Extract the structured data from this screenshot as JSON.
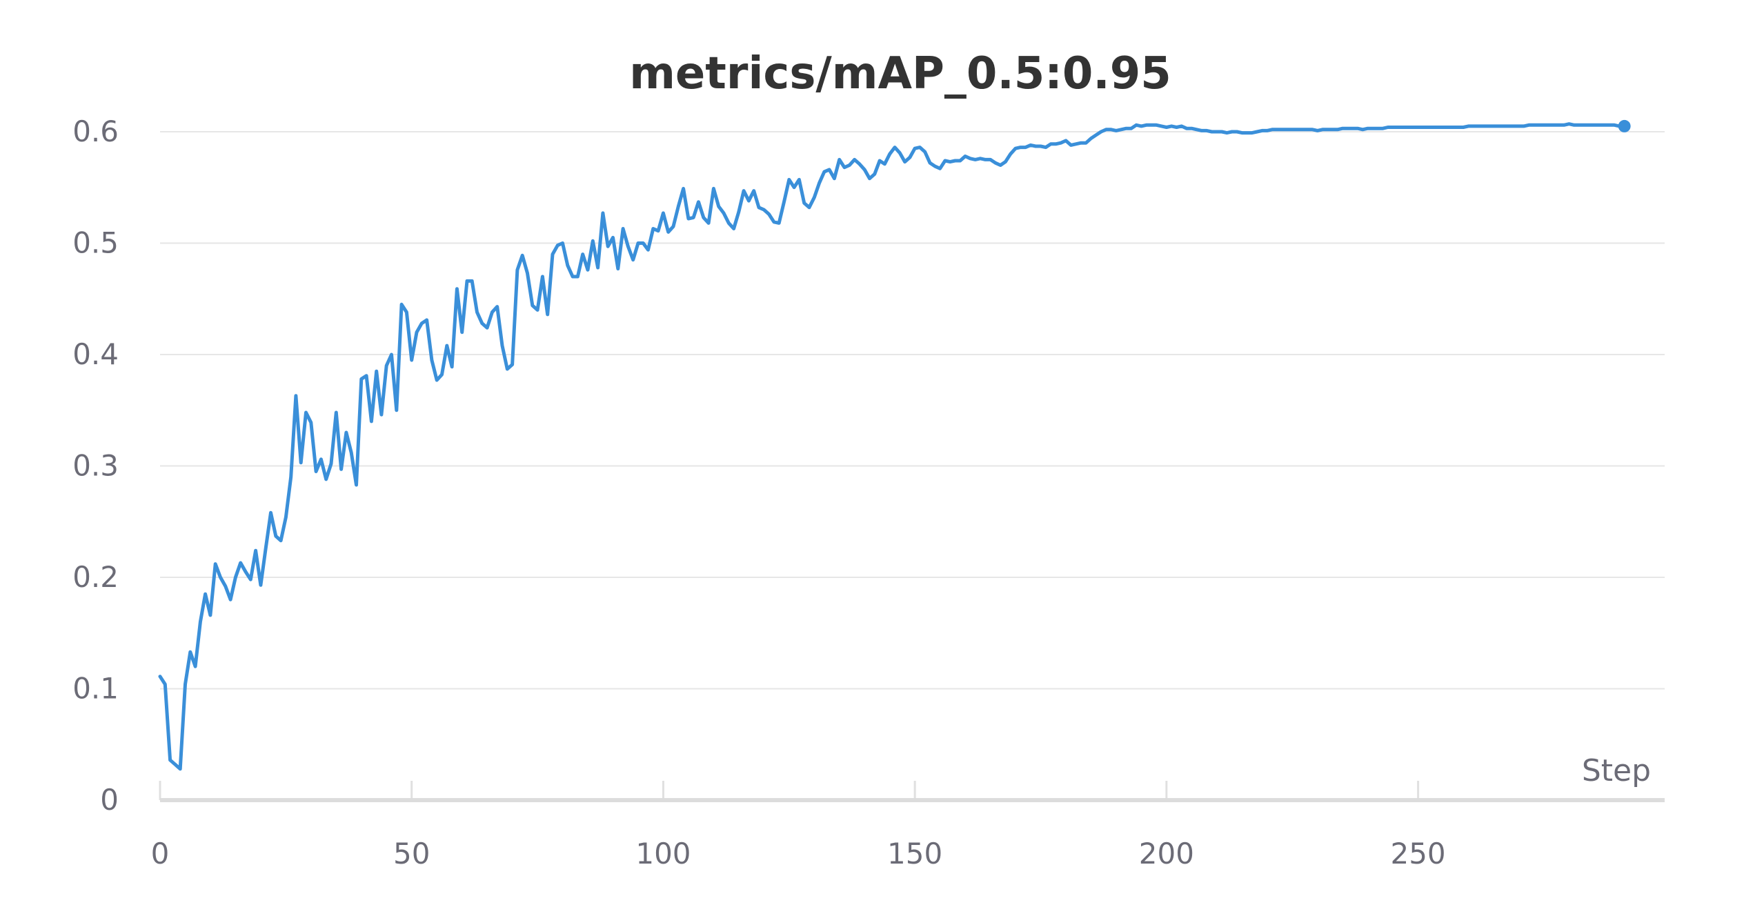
{
  "chart_data": {
    "type": "line",
    "title": "metrics/mAP_0.5:0.95",
    "xlabel": "Step",
    "ylabel": "",
    "xlim": [
      0,
      299
    ],
    "ylim": [
      0,
      0.62
    ],
    "x_ticks": [
      "0",
      "50",
      "100",
      "150",
      "200",
      "250"
    ],
    "y_ticks": [
      "0",
      "0.1",
      "0.2",
      "0.3",
      "0.4",
      "0.5",
      "0.6"
    ],
    "grid": true,
    "line_color": "#3a8fd9",
    "series": [
      {
        "x_start": 0,
        "x_step": 1,
        "values": [
          0.111,
          0.104,
          0.036,
          0.032,
          0.028,
          0.104,
          0.133,
          0.12,
          0.16,
          0.185,
          0.166,
          0.212,
          0.2,
          0.192,
          0.18,
          0.2,
          0.213,
          0.205,
          0.198,
          0.224,
          0.193,
          0.226,
          0.258,
          0.237,
          0.233,
          0.254,
          0.29,
          0.363,
          0.303,
          0.348,
          0.339,
          0.295,
          0.306,
          0.288,
          0.302,
          0.348,
          0.297,
          0.33,
          0.312,
          0.283,
          0.378,
          0.381,
          0.34,
          0.385,
          0.346,
          0.39,
          0.4,
          0.35,
          0.445,
          0.438,
          0.395,
          0.42,
          0.428,
          0.431,
          0.395,
          0.377,
          0.382,
          0.408,
          0.389,
          0.459,
          0.42,
          0.466,
          0.466,
          0.438,
          0.428,
          0.424,
          0.438,
          0.443,
          0.408,
          0.387,
          0.391,
          0.476,
          0.489,
          0.473,
          0.444,
          0.44,
          0.47,
          0.436,
          0.49,
          0.498,
          0.5,
          0.48,
          0.47,
          0.47,
          0.49,
          0.476,
          0.502,
          0.478,
          0.527,
          0.497,
          0.505,
          0.477,
          0.513,
          0.497,
          0.485,
          0.5,
          0.5,
          0.494,
          0.513,
          0.511,
          0.527,
          0.51,
          0.515,
          0.533,
          0.549,
          0.522,
          0.523,
          0.537,
          0.523,
          0.518,
          0.549,
          0.533,
          0.527,
          0.518,
          0.513,
          0.528,
          0.547,
          0.538,
          0.547,
          0.532,
          0.53,
          0.526,
          0.519,
          0.518,
          0.537,
          0.557,
          0.55,
          0.557,
          0.536,
          0.532,
          0.541,
          0.554,
          0.564,
          0.566,
          0.558,
          0.575,
          0.568,
          0.57,
          0.575,
          0.571,
          0.566,
          0.558,
          0.562,
          0.574,
          0.571,
          0.58,
          0.586,
          0.581,
          0.573,
          0.577,
          0.585,
          0.586,
          0.582,
          0.572,
          0.569,
          0.567,
          0.574,
          0.573,
          0.574,
          0.574,
          0.578,
          0.576,
          0.575,
          0.576,
          0.575,
          0.575,
          0.572,
          0.57,
          0.573,
          0.58,
          0.585,
          0.586,
          0.586,
          0.588,
          0.587,
          0.587,
          0.586,
          0.589,
          0.589,
          0.59,
          0.592,
          0.588,
          0.589,
          0.59,
          0.59,
          0.594,
          0.597,
          0.6,
          0.602,
          0.602,
          0.601,
          0.602,
          0.603,
          0.603,
          0.606,
          0.605,
          0.606,
          0.606,
          0.606,
          0.605,
          0.604,
          0.605,
          0.604,
          0.605,
          0.603,
          0.603,
          0.602,
          0.601,
          0.601,
          0.6,
          0.6,
          0.6,
          0.599,
          0.6,
          0.6,
          0.599,
          0.599,
          0.599,
          0.6,
          0.601,
          0.601,
          0.602,
          0.602,
          0.602,
          0.602,
          0.602,
          0.602,
          0.602,
          0.602,
          0.602,
          0.601,
          0.602,
          0.602,
          0.602,
          0.602,
          0.603,
          0.603,
          0.603,
          0.603,
          0.602,
          0.603,
          0.603,
          0.603,
          0.603,
          0.604,
          0.604,
          0.604,
          0.604,
          0.604,
          0.604,
          0.604,
          0.604,
          0.604,
          0.604,
          0.604,
          0.604,
          0.604,
          0.604,
          0.604,
          0.604,
          0.605,
          0.605,
          0.605,
          0.605,
          0.605,
          0.605,
          0.605,
          0.605,
          0.605,
          0.605,
          0.605,
          0.605,
          0.606,
          0.606,
          0.606,
          0.606,
          0.606,
          0.606,
          0.606,
          0.606,
          0.607,
          0.606,
          0.606,
          0.606,
          0.606,
          0.606,
          0.606,
          0.606,
          0.606,
          0.606,
          0.605,
          0.605
        ]
      }
    ]
  }
}
